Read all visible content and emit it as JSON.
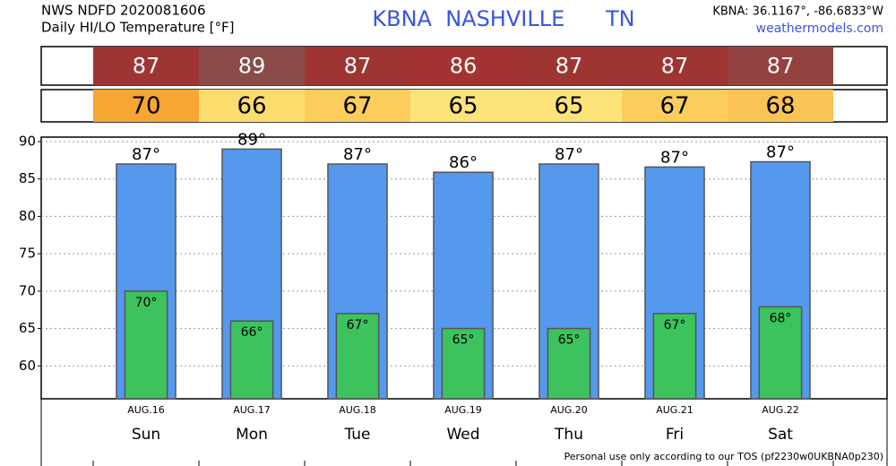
{
  "chart_data": {
    "type": "bar",
    "source": "NWS NDFD 2020081606",
    "subtitle": "Daily HI/LO Temperature [°F]",
    "title": "KBNA  NASHVILLE      TN",
    "location": "KBNA: 36.1167°, -86.6833°W",
    "website": "weathermodels.com",
    "footer": "Personal use only according to our TOS (pf2230w0UKBNA0p230)",
    "categories": [
      "Sun",
      "Mon",
      "Tue",
      "Wed",
      "Thu",
      "Fri",
      "Sat"
    ],
    "dates": [
      "AUG.16",
      "AUG.17",
      "AUG.18",
      "AUG.19",
      "AUG.20",
      "AUG.21",
      "AUG.22"
    ],
    "series": [
      {
        "name": "HI",
        "color": "#5599ee",
        "values": [
          87,
          89,
          87,
          85.9,
          87,
          86.6,
          87.3
        ],
        "value_labels": [
          "87°",
          "89°",
          "87°",
          "86°",
          "87°",
          "87°",
          "87°"
        ],
        "strip_labels": [
          "87",
          "89",
          "87",
          "86",
          "87",
          "87",
          "87"
        ],
        "strip_colors": [
          "#9e3533",
          "#8b4b49",
          "#9e3533",
          "#a33330",
          "#9e3533",
          "#9e3533",
          "#934240"
        ]
      },
      {
        "name": "LO",
        "color": "#3cc35e",
        "values": [
          70,
          66,
          67,
          65,
          65,
          67,
          67.9
        ],
        "value_labels": [
          "70°",
          "66°",
          "67°",
          "65°",
          "65°",
          "67°",
          "68°"
        ],
        "strip_labels": [
          "70",
          "66",
          "67",
          "65",
          "65",
          "67",
          "68"
        ],
        "strip_colors": [
          "#f7a533",
          "#fddc6e",
          "#fccd5a",
          "#fee37a",
          "#fee37a",
          "#fccd5a",
          "#f9c454"
        ]
      }
    ],
    "ylim": [
      55.6,
      90.6
    ],
    "yticks": [
      60,
      65,
      70,
      75,
      80,
      85,
      90
    ],
    "grid": true
  }
}
